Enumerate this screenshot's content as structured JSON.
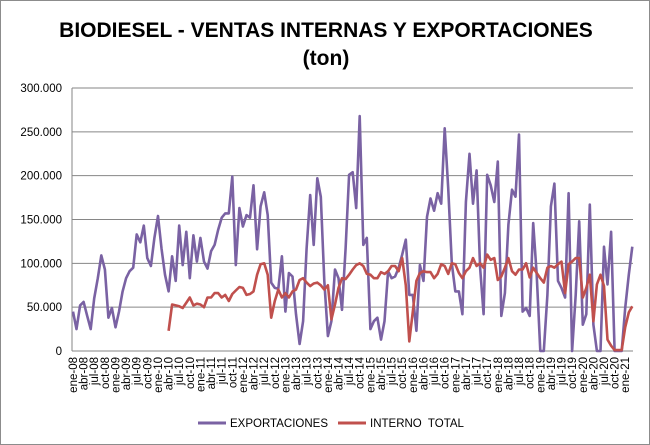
{
  "chart_data": {
    "type": "line",
    "title": "BIODIESEL - VENTAS INTERNAS Y EXPORTACIONES",
    "subtitle": "(ton)",
    "xlabel": "",
    "ylabel": "",
    "frequency": "monthly",
    "x_start": "ene-08",
    "x_end": "mar-21",
    "x_tick_labels": [
      "ene-08",
      "abr-08",
      "jul-08",
      "oct-08",
      "ene-09",
      "abr-09",
      "jul-09",
      "oct-09",
      "ene-10",
      "abr-10",
      "jul-10",
      "oct-10",
      "ene-11",
      "abr-11",
      "jul-11",
      "oct-11",
      "ene-12",
      "abr-12",
      "jul-12",
      "oct-12",
      "ene-13",
      "abr-13",
      "jul-13",
      "oct-13",
      "ene-14",
      "abr-14",
      "jul-14",
      "oct-14",
      "ene-15",
      "abr-15",
      "jul-15",
      "oct-15",
      "ene-16",
      "abr-16",
      "jul-16",
      "oct-16",
      "ene-17",
      "abr-17",
      "jul-17",
      "oct-17",
      "ene-18",
      "abr-18",
      "jul-18",
      "oct-18",
      "ene-19",
      "abr-19",
      "jul-19",
      "oct-19",
      "ene-20",
      "abr-20",
      "jul-20",
      "oct-20",
      "ene-21"
    ],
    "y_tick_labels": [
      "0",
      "50.000",
      "100.000",
      "150.000",
      "200.000",
      "250.000",
      "300.000"
    ],
    "ylim": [
      0,
      300000
    ],
    "grid": true,
    "legend_position": "bottom",
    "series": [
      {
        "name": "EXPORTACIONES",
        "color": "#7a62a3",
        "start_index": 0,
        "values": [
          45000,
          25000,
          52000,
          56000,
          40000,
          25000,
          60000,
          83000,
          109000,
          93000,
          38000,
          49000,
          27000,
          45000,
          68000,
          83000,
          91000,
          95000,
          133000,
          124000,
          143000,
          106000,
          97000,
          129000,
          154000,
          117000,
          87000,
          68000,
          108000,
          80000,
          143000,
          98000,
          136000,
          83000,
          132000,
          102000,
          129000,
          102000,
          94000,
          114000,
          121000,
          138000,
          152000,
          157000,
          157000,
          199000,
          98000,
          163000,
          142000,
          155000,
          152000,
          189000,
          116000,
          165000,
          181000,
          155000,
          78000,
          72000,
          71000,
          108000,
          45000,
          89000,
          85000,
          42000,
          8000,
          34000,
          117000,
          178000,
          121000,
          197000,
          176000,
          80000,
          17000,
          34000,
          93000,
          83000,
          47000,
          117000,
          201000,
          204000,
          163000,
          268000,
          121000,
          129000,
          25000,
          34000,
          38000,
          13000,
          34000,
          91000,
          83000,
          85000,
          95000,
          110000,
          127000,
          64000,
          64000,
          23000,
          98000,
          80000,
          153000,
          174000,
          160000,
          180000,
          168000,
          254000,
          186000,
          100000,
          68000,
          68000,
          42000,
          170000,
          225000,
          168000,
          206000,
          95000,
          42000,
          201000,
          189000,
          170000,
          216000,
          40000,
          66000,
          144000,
          184000,
          176000,
          247000,
          45000,
          49000,
          40000,
          146000,
          87000,
          0,
          0,
          64000,
          165000,
          191000,
          80000,
          72000,
          61000,
          180000,
          0,
          64000,
          148000,
          30000,
          42000,
          167000,
          30000,
          0,
          0,
          119000,
          76000,
          136000,
          0,
          0,
          0,
          49000,
          87000,
          119000
        ]
      },
      {
        "name": "INTERNO  TOTAL",
        "color": "#c0504d",
        "start_index": 27,
        "values": [
          23000,
          53000,
          52000,
          51000,
          49000,
          55000,
          61000,
          52000,
          54000,
          53000,
          50000,
          61000,
          61000,
          66000,
          66000,
          61000,
          64000,
          57000,
          65000,
          69000,
          73000,
          72000,
          64000,
          65000,
          68000,
          87000,
          99000,
          100000,
          87000,
          38000,
          57000,
          70000,
          61000,
          66000,
          61000,
          68000,
          70000,
          81000,
          83000,
          78000,
          74000,
          77000,
          78000,
          75000,
          70000,
          75000,
          36000,
          53000,
          72000,
          83000,
          82000,
          87000,
          93000,
          98000,
          100000,
          97000,
          88000,
          87000,
          83000,
          83000,
          90000,
          88000,
          91000,
          97000,
          97000,
          91000,
          106000,
          75000,
          11000,
          45000,
          80000,
          89000,
          91000,
          90000,
          90000,
          83000,
          88000,
          99000,
          97000,
          88000,
          100000,
          99000,
          89000,
          83000,
          91000,
          95000,
          106000,
          97000,
          100000,
          95000,
          110000,
          104000,
          106000,
          81000,
          85000,
          95000,
          106000,
          91000,
          87000,
          93000,
          93000,
          100000,
          84000,
          95000,
          89000,
          83000,
          78000,
          95000,
          97000,
          95000,
          99000,
          102000,
          66000,
          99000,
          102000,
          106000,
          106000,
          61000,
          72000,
          87000,
          34000,
          76000,
          87000,
          74000,
          13000,
          6000,
          1000,
          1000,
          1000,
          27000,
          44000,
          51000
        ]
      }
    ]
  }
}
